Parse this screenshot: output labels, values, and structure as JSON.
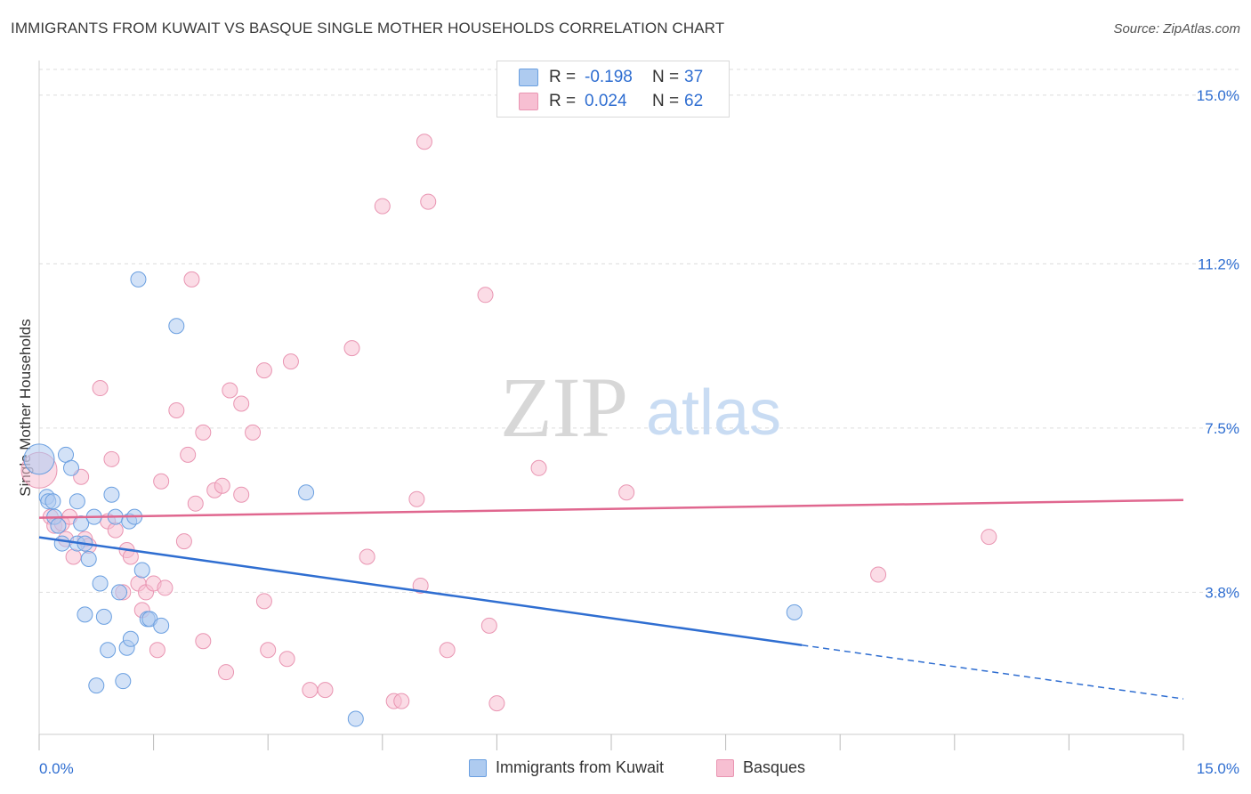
{
  "header": {
    "title": "IMMIGRANTS FROM KUWAIT VS BASQUE SINGLE MOTHER HOUSEHOLDS CORRELATION CHART",
    "source": "Source: ZipAtlas.com"
  },
  "watermark": {
    "zip": "ZIP",
    "atlas": "atlas"
  },
  "legend": {
    "rows": [
      {
        "r_label": "R =",
        "r_value": "-0.198",
        "n_label": "N =",
        "n_value": "37"
      },
      {
        "r_label": "R =",
        "r_value": "0.024",
        "n_label": "N =",
        "n_value": "62"
      }
    ]
  },
  "bottom_legend": {
    "series1": "Immigrants from Kuwait",
    "series2": "Basques"
  },
  "colors": {
    "blue_fill": "#aecbf0",
    "blue_stroke": "#6a9fe0",
    "blue_line": "#2f6ed1",
    "pink_fill": "#f7bfd2",
    "pink_stroke": "#e995b2",
    "pink_line": "#e0678f",
    "tick_label": "#2f6ed1",
    "grid": "#dddddd"
  },
  "chart_data": {
    "type": "scatter",
    "title": "IMMIGRANTS FROM KUWAIT VS BASQUE SINGLE MOTHER HOUSEHOLDS CORRELATION CHART",
    "xlabel": "",
    "ylabel": "Single Mother Households",
    "xlim": [
      0,
      15
    ],
    "ylim": [
      0.6,
      15.7
    ],
    "x_tick_labels": [
      {
        "value": 0,
        "label": "0.0%"
      },
      {
        "value": 15,
        "label": "15.0%"
      }
    ],
    "y_ticks": [
      {
        "value": 3.8,
        "label": "3.8%"
      },
      {
        "value": 7.5,
        "label": "7.5%"
      },
      {
        "value": 11.2,
        "label": "11.2%"
      },
      {
        "value": 15.0,
        "label": "15.0%"
      }
    ],
    "grid": "horizontal dashed",
    "legend_position": "top-center",
    "series": [
      {
        "name": "Immigrants from Kuwait",
        "color": "#6a9fe0",
        "trend": {
          "x": [
            0,
            10
          ],
          "y": [
            5.04,
            2.61
          ],
          "dashed_extension_to": [
            15,
            1.4
          ]
        },
        "points": [
          [
            0.0,
            6.8
          ],
          [
            0.1,
            5.95
          ],
          [
            0.12,
            5.85
          ],
          [
            0.18,
            5.85
          ],
          [
            0.2,
            5.5
          ],
          [
            0.35,
            6.9
          ],
          [
            0.42,
            6.6
          ],
          [
            0.5,
            5.85
          ],
          [
            0.55,
            5.35
          ],
          [
            0.5,
            4.9
          ],
          [
            0.6,
            4.9
          ],
          [
            0.65,
            4.55
          ],
          [
            0.72,
            5.5
          ],
          [
            0.8,
            4.0
          ],
          [
            0.85,
            3.25
          ],
          [
            0.6,
            3.3
          ],
          [
            0.9,
            2.5
          ],
          [
            0.95,
            6.0
          ],
          [
            1.0,
            5.5
          ],
          [
            1.05,
            3.8
          ],
          [
            1.1,
            1.8
          ],
          [
            1.15,
            2.55
          ],
          [
            1.2,
            2.75
          ],
          [
            1.18,
            5.4
          ],
          [
            1.25,
            5.5
          ],
          [
            1.35,
            4.3
          ],
          [
            1.42,
            3.2
          ],
          [
            1.45,
            3.2
          ],
          [
            1.6,
            3.05
          ],
          [
            0.75,
            1.7
          ],
          [
            1.3,
            10.85
          ],
          [
            1.8,
            9.8
          ],
          [
            3.5,
            6.05
          ],
          [
            4.15,
            0.95
          ],
          [
            9.9,
            3.35
          ],
          [
            0.3,
            4.9
          ],
          [
            0.25,
            5.3
          ]
        ]
      },
      {
        "name": "Basques",
        "color": "#e995b2",
        "trend": {
          "x": [
            0,
            15
          ],
          "y": [
            5.48,
            5.88
          ]
        },
        "points": [
          [
            0.0,
            6.55
          ],
          [
            0.15,
            5.5
          ],
          [
            0.2,
            5.3
          ],
          [
            0.3,
            5.35
          ],
          [
            0.35,
            5.0
          ],
          [
            0.4,
            5.5
          ],
          [
            0.45,
            4.6
          ],
          [
            0.55,
            6.4
          ],
          [
            0.6,
            5.0
          ],
          [
            0.65,
            4.85
          ],
          [
            0.8,
            8.4
          ],
          [
            0.9,
            5.4
          ],
          [
            0.95,
            6.8
          ],
          [
            1.0,
            5.2
          ],
          [
            1.1,
            3.8
          ],
          [
            1.15,
            4.75
          ],
          [
            1.2,
            4.6
          ],
          [
            1.3,
            4.0
          ],
          [
            1.35,
            3.4
          ],
          [
            1.4,
            3.8
          ],
          [
            1.5,
            4.0
          ],
          [
            1.55,
            2.5
          ],
          [
            1.6,
            6.3
          ],
          [
            1.65,
            3.9
          ],
          [
            1.8,
            7.9
          ],
          [
            1.9,
            4.95
          ],
          [
            1.95,
            6.9
          ],
          [
            2.0,
            10.85
          ],
          [
            2.05,
            5.8
          ],
          [
            2.15,
            7.4
          ],
          [
            2.15,
            2.7
          ],
          [
            2.3,
            6.1
          ],
          [
            2.4,
            6.2
          ],
          [
            2.45,
            2.0
          ],
          [
            2.5,
            8.35
          ],
          [
            2.65,
            8.05
          ],
          [
            2.65,
            6.0
          ],
          [
            2.8,
            7.4
          ],
          [
            2.95,
            8.8
          ],
          [
            2.95,
            3.6
          ],
          [
            3.0,
            2.5
          ],
          [
            3.25,
            2.3
          ],
          [
            3.3,
            9.0
          ],
          [
            3.55,
            1.6
          ],
          [
            3.75,
            1.6
          ],
          [
            4.1,
            9.3
          ],
          [
            4.3,
            4.6
          ],
          [
            4.5,
            12.5
          ],
          [
            4.65,
            1.35
          ],
          [
            4.75,
            1.35
          ],
          [
            4.95,
            5.9
          ],
          [
            5.0,
            3.95
          ],
          [
            5.05,
            13.95
          ],
          [
            5.1,
            12.6
          ],
          [
            5.35,
            2.5
          ],
          [
            5.85,
            10.5
          ],
          [
            5.9,
            3.05
          ],
          [
            6.0,
            1.3
          ],
          [
            6.55,
            6.6
          ],
          [
            7.7,
            6.05
          ],
          [
            11.0,
            4.2
          ],
          [
            12.45,
            5.05
          ]
        ]
      }
    ]
  }
}
